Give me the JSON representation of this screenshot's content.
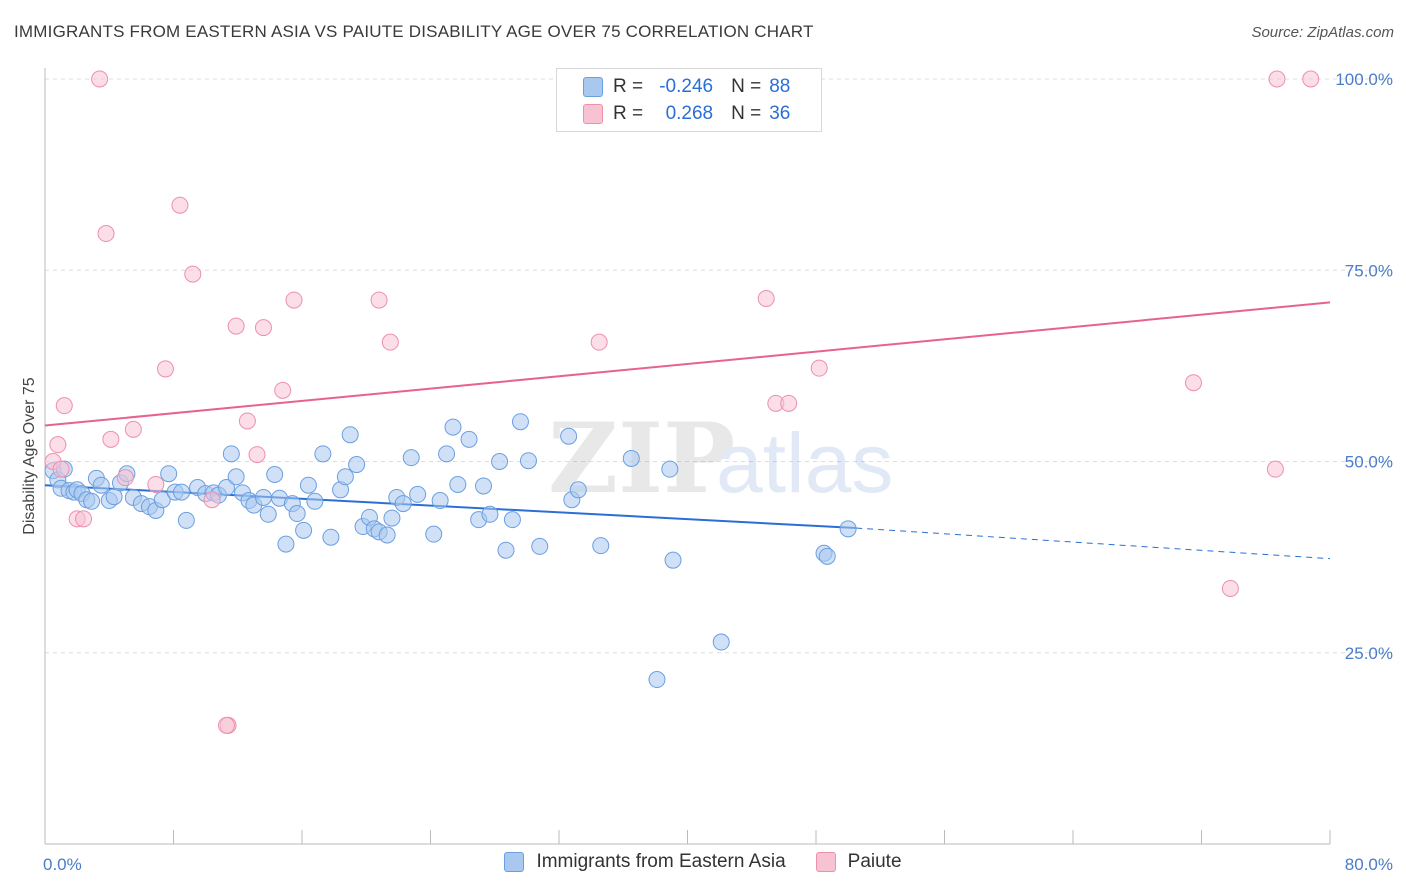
{
  "title": "IMMIGRANTS FROM EASTERN ASIA VS PAIUTE DISABILITY AGE OVER 75 CORRELATION CHART",
  "source": "Source: ZipAtlas.com",
  "watermark": {
    "zip": "ZIP",
    "atlas": "atlas"
  },
  "legend": {
    "r_label": "R =",
    "n_label": "N =",
    "series1": {
      "r": "-0.246",
      "n": "88"
    },
    "series2": {
      "r": "0.268",
      "n": "36"
    }
  },
  "colors": {
    "series1_fill": "#a9c8f0",
    "series1_stroke": "#6a9fe0",
    "series1_line": "#2a6fd6",
    "series2_fill": "#f7c3d3",
    "series2_stroke": "#ee8fae",
    "series2_line": "#e8628f",
    "tick_label": "#4a7cc9",
    "grid": "#dddddd"
  },
  "chart_data": {
    "type": "scatter",
    "title": "IMMIGRANTS FROM EASTERN ASIA VS PAIUTE DISABILITY AGE OVER 75 CORRELATION CHART",
    "xlabel": "",
    "ylabel": "Disability Age Over 75",
    "xlim": [
      0,
      80
    ],
    "ylim": [
      0,
      105
    ],
    "x_tick_labels": [
      "0.0%",
      "80.0%"
    ],
    "y_ticks": [
      25,
      50,
      75,
      100
    ],
    "y_tick_labels": [
      "25.0%",
      "50.0%",
      "75.0%",
      "100.0%"
    ],
    "grid": true,
    "legend_position": "bottom",
    "series": [
      {
        "name": "Immigrants from Eastern Asia",
        "trend": {
          "x": [
            0,
            50.5
          ],
          "y": [
            46.9,
            41.3
          ],
          "dashed_to": [
            80,
            37.3
          ]
        },
        "points": [
          [
            0.5,
            48.8
          ],
          [
            0.8,
            47.6
          ],
          [
            1.0,
            46.5
          ],
          [
            1.2,
            49.0
          ],
          [
            1.5,
            46.2
          ],
          [
            1.8,
            46.0
          ],
          [
            2.0,
            46.3
          ],
          [
            2.3,
            45.8
          ],
          [
            2.6,
            45.0
          ],
          [
            2.9,
            44.8
          ],
          [
            3.2,
            47.8
          ],
          [
            3.5,
            46.9
          ],
          [
            4.0,
            44.9
          ],
          [
            4.3,
            45.4
          ],
          [
            4.7,
            47.2
          ],
          [
            5.1,
            48.4
          ],
          [
            5.5,
            45.3
          ],
          [
            6.0,
            44.5
          ],
          [
            6.5,
            44.1
          ],
          [
            6.9,
            43.6
          ],
          [
            7.3,
            45.0
          ],
          [
            7.7,
            48.4
          ],
          [
            8.1,
            46.0
          ],
          [
            8.5,
            46.0
          ],
          [
            8.8,
            42.3
          ],
          [
            9.5,
            46.6
          ],
          [
            10.0,
            45.8
          ],
          [
            10.5,
            45.9
          ],
          [
            10.8,
            45.6
          ],
          [
            11.3,
            46.6
          ],
          [
            11.6,
            51.0
          ],
          [
            11.9,
            48.0
          ],
          [
            12.3,
            45.9
          ],
          [
            12.7,
            44.9
          ],
          [
            13.0,
            44.3
          ],
          [
            13.6,
            45.3
          ],
          [
            13.9,
            43.1
          ],
          [
            14.3,
            48.3
          ],
          [
            14.6,
            45.2
          ],
          [
            15.0,
            39.2
          ],
          [
            15.4,
            44.5
          ],
          [
            15.7,
            43.2
          ],
          [
            16.1,
            41.0
          ],
          [
            16.4,
            46.9
          ],
          [
            16.8,
            44.8
          ],
          [
            17.3,
            51.0
          ],
          [
            17.8,
            40.1
          ],
          [
            18.4,
            46.3
          ],
          [
            18.7,
            48.0
          ],
          [
            19.0,
            53.5
          ],
          [
            19.4,
            49.6
          ],
          [
            19.8,
            41.5
          ],
          [
            20.2,
            42.7
          ],
          [
            20.5,
            41.2
          ],
          [
            20.8,
            40.8
          ],
          [
            21.3,
            40.4
          ],
          [
            21.6,
            42.6
          ],
          [
            21.9,
            45.3
          ],
          [
            22.3,
            44.5
          ],
          [
            22.8,
            50.5
          ],
          [
            23.2,
            45.7
          ],
          [
            24.2,
            40.5
          ],
          [
            24.6,
            44.9
          ],
          [
            25.0,
            51.0
          ],
          [
            25.4,
            54.5
          ],
          [
            25.7,
            47.0
          ],
          [
            26.4,
            52.9
          ],
          [
            27.0,
            42.4
          ],
          [
            27.3,
            46.8
          ],
          [
            27.7,
            43.1
          ],
          [
            28.3,
            50.0
          ],
          [
            28.7,
            38.4
          ],
          [
            29.1,
            42.4
          ],
          [
            29.6,
            55.2
          ],
          [
            30.1,
            50.1
          ],
          [
            30.8,
            38.9
          ],
          [
            32.6,
            53.3
          ],
          [
            32.8,
            45.0
          ],
          [
            33.2,
            46.3
          ],
          [
            34.6,
            39.0
          ],
          [
            36.5,
            50.4
          ],
          [
            38.1,
            21.5
          ],
          [
            38.9,
            49.0
          ],
          [
            39.1,
            37.1
          ],
          [
            42.1,
            26.4
          ],
          [
            48.5,
            38.0
          ],
          [
            48.7,
            37.6
          ],
          [
            50.0,
            41.2
          ]
        ]
      },
      {
        "name": "Paiute",
        "trend": {
          "x": [
            0,
            80
          ],
          "y": [
            54.7,
            70.8
          ]
        },
        "points": [
          [
            0.5,
            50.0
          ],
          [
            0.8,
            52.2
          ],
          [
            1.0,
            49.0
          ],
          [
            1.2,
            57.3
          ],
          [
            2.0,
            42.5
          ],
          [
            2.4,
            42.5
          ],
          [
            3.4,
            100.0
          ],
          [
            3.8,
            79.8
          ],
          [
            4.1,
            52.9
          ],
          [
            5.0,
            47.9
          ],
          [
            5.5,
            54.2
          ],
          [
            6.9,
            47.0
          ],
          [
            7.5,
            62.1
          ],
          [
            8.4,
            83.5
          ],
          [
            9.2,
            74.5
          ],
          [
            10.4,
            45.0
          ],
          [
            11.4,
            15.5
          ],
          [
            11.9,
            67.7
          ],
          [
            12.6,
            55.3
          ],
          [
            13.2,
            50.9
          ],
          [
            13.6,
            67.5
          ],
          [
            14.8,
            59.3
          ],
          [
            15.5,
            71.1
          ],
          [
            11.3,
            15.5
          ],
          [
            20.8,
            71.1
          ],
          [
            21.5,
            65.6
          ],
          [
            34.5,
            65.6
          ],
          [
            44.9,
            71.3
          ],
          [
            45.5,
            57.6
          ],
          [
            46.3,
            57.6
          ],
          [
            48.2,
            62.2
          ],
          [
            71.5,
            60.3
          ],
          [
            76.6,
            49.0
          ],
          [
            76.7,
            100.0
          ],
          [
            78.8,
            100.0
          ],
          [
            73.8,
            33.4
          ]
        ]
      }
    ]
  }
}
